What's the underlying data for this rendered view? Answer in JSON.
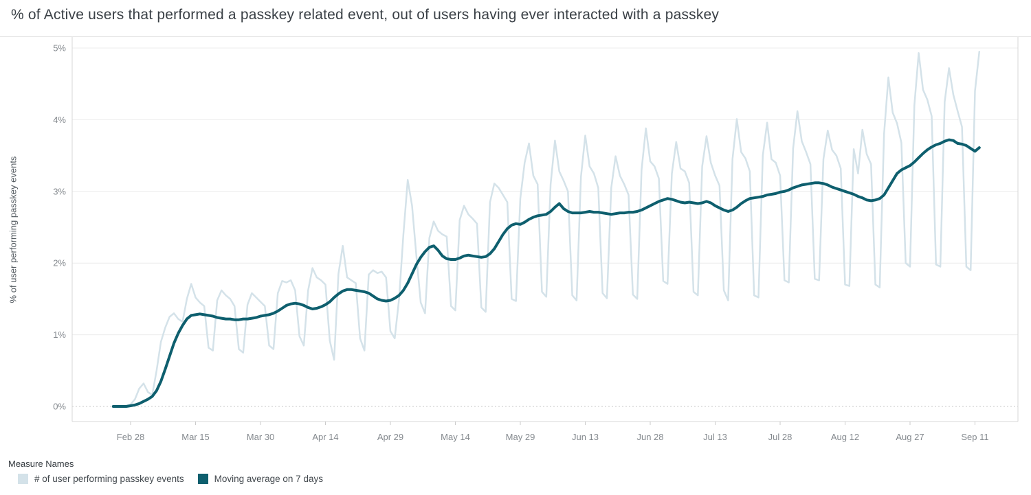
{
  "title": "% of Active users that performed a passkey related event, out of users having ever interacted with a passkey",
  "colors": {
    "daily_series": "#d4e2e9",
    "moving_average": "#0e5f6e",
    "gridline": "#ececec",
    "zero_gridline": "#d2d2d2",
    "axis_line": "#d7d7d7",
    "tick_mark": "#cbcbcb",
    "tick_label": "#84898e",
    "title_text": "#3a4046",
    "background": "#ffffff"
  },
  "legend": {
    "title": "Measure Names",
    "items": [
      {
        "label": "# of user performing passkey events",
        "color": "#d4e2e9"
      },
      {
        "label": "Moving average on 7 days",
        "color": "#0e5f6e"
      }
    ]
  },
  "chart_data": {
    "type": "line",
    "title": "% of Active users that performed a passkey related event, out of users having ever interacted with a passkey",
    "xlabel": "",
    "ylabel": "% of user performing passkey events",
    "ylim": [
      0,
      5.15
    ],
    "y_tick_labels": [
      "0%",
      "1%",
      "2%",
      "3%",
      "4%",
      "5%"
    ],
    "y_tick_values": [
      0,
      1,
      2,
      3,
      4,
      5
    ],
    "grid": "horizontal, dotted baseline at 0%",
    "legend_position": "bottom-left",
    "x_unit": "day",
    "x_start_label": "Feb 24",
    "x_end_label": "Sep 12",
    "x_tick_labels": [
      "Feb 28",
      "Mar 15",
      "Mar 30",
      "Apr 14",
      "Apr 29",
      "May 14",
      "May 29",
      "Jun 13",
      "Jun 28",
      "Jul 13",
      "Jul 28",
      "Aug 12",
      "Aug 27",
      "Sep 11"
    ],
    "x_tick_positions_days": [
      4,
      19,
      34,
      49,
      64,
      79,
      94,
      109,
      124,
      139,
      154,
      169,
      184,
      199
    ],
    "series": [
      {
        "name": "# of user performing passkey events",
        "color": "#d4e2e9",
        "width": 2.5,
        "values": [
          0.0,
          0.0,
          0.0,
          0.01,
          0.03,
          0.1,
          0.25,
          0.32,
          0.2,
          0.16,
          0.5,
          0.9,
          1.1,
          1.25,
          1.3,
          1.22,
          1.18,
          1.5,
          1.71,
          1.52,
          1.45,
          1.4,
          0.82,
          0.78,
          1.48,
          1.62,
          1.55,
          1.5,
          1.4,
          0.8,
          0.75,
          1.42,
          1.58,
          1.52,
          1.46,
          1.4,
          0.85,
          0.8,
          1.58,
          1.75,
          1.73,
          1.76,
          1.62,
          0.98,
          0.85,
          1.62,
          1.93,
          1.8,
          1.76,
          1.7,
          0.92,
          0.65,
          1.85,
          2.24,
          1.8,
          1.76,
          1.72,
          0.95,
          0.78,
          1.84,
          1.9,
          1.86,
          1.88,
          1.8,
          1.05,
          0.95,
          1.5,
          2.4,
          3.16,
          2.8,
          2.1,
          1.45,
          1.3,
          2.35,
          2.58,
          2.45,
          2.4,
          2.37,
          1.4,
          1.34,
          2.6,
          2.8,
          2.68,
          2.62,
          2.55,
          1.38,
          1.32,
          2.85,
          3.11,
          3.05,
          2.95,
          2.85,
          1.5,
          1.47,
          2.9,
          3.4,
          3.67,
          3.22,
          3.1,
          1.6,
          1.53,
          3.1,
          3.71,
          3.28,
          3.15,
          3.0,
          1.55,
          1.48,
          3.2,
          3.78,
          3.35,
          3.25,
          3.05,
          1.58,
          1.51,
          3.05,
          3.49,
          3.22,
          3.1,
          2.95,
          1.56,
          1.5,
          3.3,
          3.88,
          3.42,
          3.35,
          3.18,
          1.75,
          1.71,
          3.25,
          3.69,
          3.32,
          3.28,
          3.12,
          1.6,
          1.55,
          3.35,
          3.77,
          3.4,
          3.22,
          3.08,
          1.62,
          1.48,
          3.45,
          4.01,
          3.55,
          3.46,
          3.28,
          1.55,
          1.52,
          3.5,
          3.96,
          3.45,
          3.4,
          3.22,
          1.76,
          1.73,
          3.6,
          4.12,
          3.7,
          3.55,
          3.38,
          1.78,
          1.76,
          3.45,
          3.85,
          3.58,
          3.5,
          3.32,
          1.7,
          1.68,
          3.59,
          3.25,
          3.86,
          3.52,
          3.38,
          1.7,
          1.66,
          3.8,
          4.59,
          4.1,
          3.95,
          3.68,
          2.0,
          1.95,
          4.2,
          4.93,
          4.42,
          4.28,
          4.05,
          1.98,
          1.95,
          4.25,
          4.72,
          4.35,
          4.12,
          3.9,
          1.95,
          1.9,
          4.4,
          4.95
        ]
      },
      {
        "name": "Moving average on 7 days",
        "color": "#0e5f6e",
        "width": 4,
        "values": [
          0.0,
          0.0,
          0.0,
          0.0,
          0.01,
          0.02,
          0.04,
          0.07,
          0.1,
          0.14,
          0.22,
          0.35,
          0.52,
          0.7,
          0.88,
          1.02,
          1.13,
          1.22,
          1.27,
          1.28,
          1.29,
          1.28,
          1.27,
          1.26,
          1.24,
          1.23,
          1.22,
          1.22,
          1.21,
          1.21,
          1.22,
          1.22,
          1.23,
          1.24,
          1.26,
          1.27,
          1.28,
          1.3,
          1.33,
          1.37,
          1.41,
          1.43,
          1.44,
          1.43,
          1.41,
          1.38,
          1.36,
          1.37,
          1.39,
          1.42,
          1.46,
          1.52,
          1.57,
          1.61,
          1.63,
          1.63,
          1.62,
          1.61,
          1.6,
          1.58,
          1.54,
          1.5,
          1.48,
          1.47,
          1.48,
          1.51,
          1.55,
          1.62,
          1.72,
          1.85,
          1.98,
          2.08,
          2.16,
          2.22,
          2.24,
          2.18,
          2.1,
          2.06,
          2.05,
          2.05,
          2.07,
          2.1,
          2.11,
          2.1,
          2.09,
          2.08,
          2.09,
          2.13,
          2.2,
          2.3,
          2.4,
          2.48,
          2.53,
          2.55,
          2.54,
          2.57,
          2.61,
          2.64,
          2.66,
          2.67,
          2.68,
          2.72,
          2.78,
          2.83,
          2.76,
          2.72,
          2.7,
          2.7,
          2.7,
          2.71,
          2.72,
          2.71,
          2.71,
          2.7,
          2.69,
          2.68,
          2.69,
          2.7,
          2.7,
          2.71,
          2.71,
          2.72,
          2.74,
          2.77,
          2.8,
          2.83,
          2.86,
          2.88,
          2.9,
          2.89,
          2.87,
          2.85,
          2.84,
          2.85,
          2.84,
          2.83,
          2.84,
          2.86,
          2.84,
          2.8,
          2.77,
          2.74,
          2.72,
          2.74,
          2.78,
          2.83,
          2.87,
          2.9,
          2.91,
          2.92,
          2.93,
          2.95,
          2.96,
          2.97,
          2.99,
          3.0,
          3.02,
          3.05,
          3.07,
          3.09,
          3.1,
          3.11,
          3.12,
          3.12,
          3.11,
          3.09,
          3.06,
          3.04,
          3.02,
          3.0,
          2.98,
          2.96,
          2.93,
          2.91,
          2.88,
          2.87,
          2.88,
          2.9,
          2.95,
          3.05,
          3.15,
          3.25,
          3.3,
          3.33,
          3.36,
          3.41,
          3.47,
          3.53,
          3.58,
          3.62,
          3.65,
          3.67,
          3.7,
          3.72,
          3.71,
          3.67,
          3.66,
          3.64,
          3.6,
          3.56,
          3.61
        ]
      }
    ]
  }
}
